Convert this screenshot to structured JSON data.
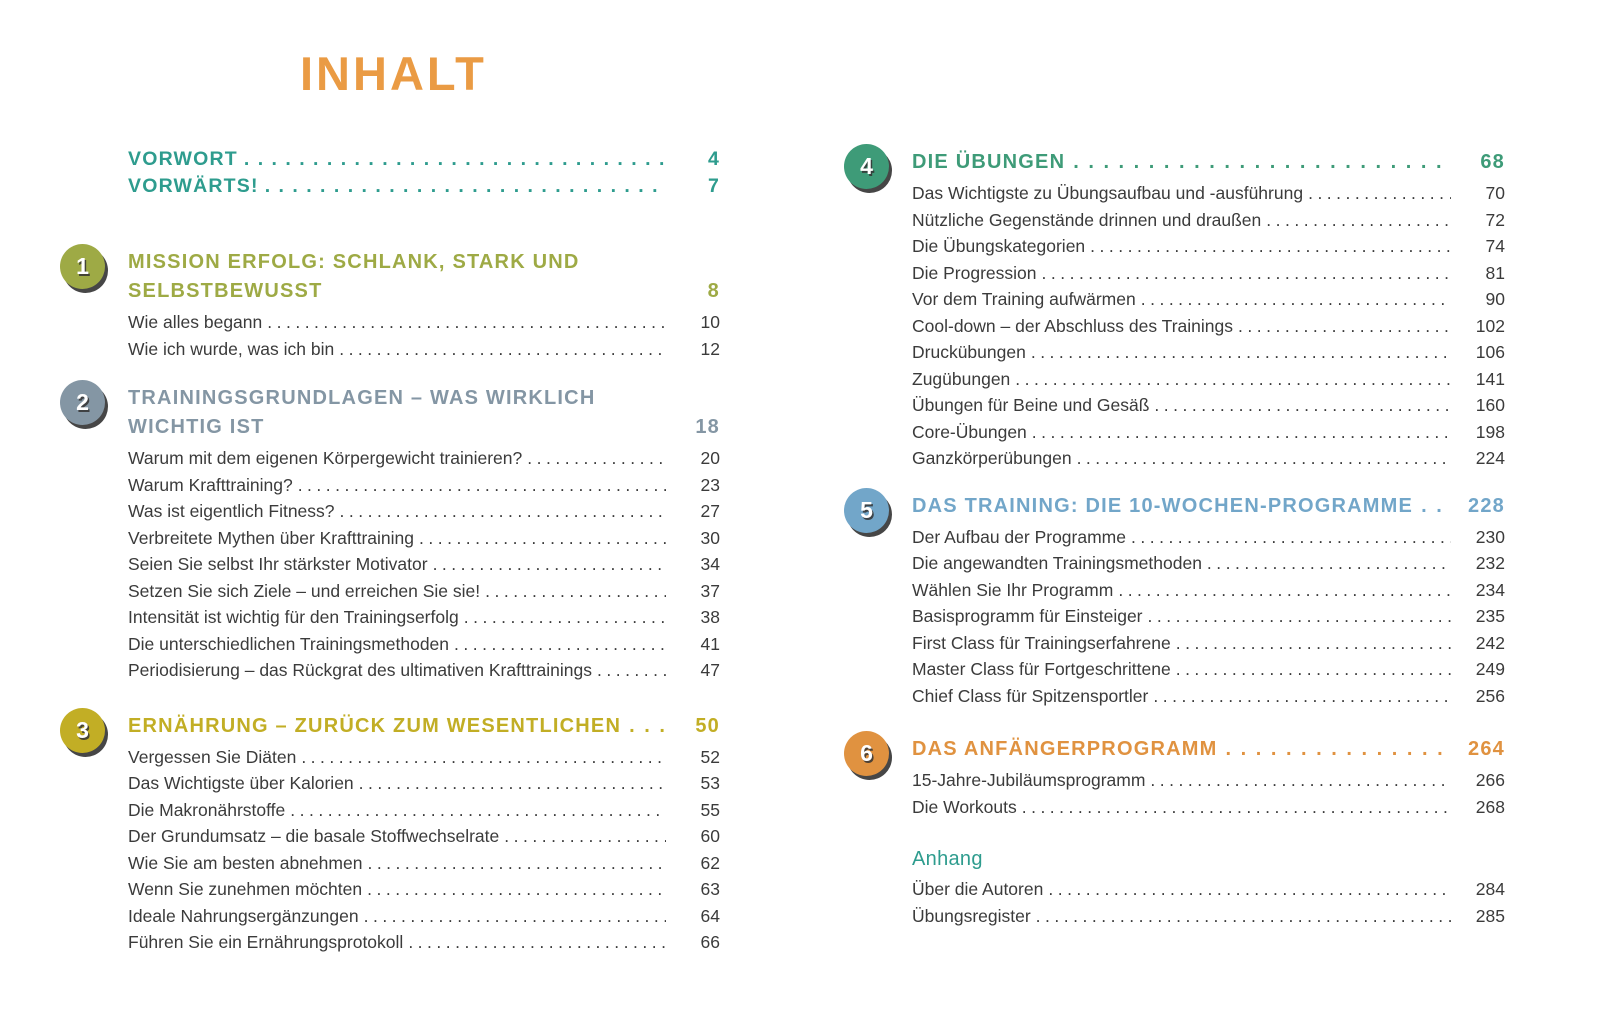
{
  "page_title": "INHALT",
  "colors": {
    "title": "#EA9B44",
    "front_matter": "#2E9C8E",
    "appendix_heading": "#2E9C8E",
    "body_text": "#3B3B3B"
  },
  "front_matter": [
    {
      "label": "VORWORT",
      "page": "4"
    },
    {
      "label": "VORWÄRTS!",
      "page": "7"
    }
  ],
  "chapters": [
    {
      "number": "1",
      "color": "#9EAA45",
      "column": "left",
      "title": "MISSION ERFOLG: SCHLANK, STARK UND SELBSTBEWUSST",
      "page": "8",
      "entries": [
        {
          "label": "Wie alles begann",
          "page": "10"
        },
        {
          "label": "Wie ich wurde, was ich bin",
          "page": "12"
        }
      ]
    },
    {
      "number": "2",
      "color": "#8496A4",
      "column": "left",
      "title": "TRAININGSGRUNDLAGEN – WAS WIRKLICH WICHTIG IST",
      "page": "18",
      "entries": [
        {
          "label": "Warum mit dem eigenen Körpergewicht trainieren?",
          "page": "20"
        },
        {
          "label": "Warum Krafttraining?",
          "page": "23"
        },
        {
          "label": "Was ist eigentlich Fitness?",
          "page": "27"
        },
        {
          "label": "Verbreitete Mythen über Krafttraining",
          "page": "30"
        },
        {
          "label": "Seien Sie selbst Ihr stärkster Motivator",
          "page": "34"
        },
        {
          "label": "Setzen Sie sich Ziele – und erreichen Sie sie!",
          "page": "37"
        },
        {
          "label": "Intensität ist wichtig für den Trainingserfolg",
          "page": "38"
        },
        {
          "label": "Die unterschiedlichen Trainingsmethoden",
          "page": "41"
        },
        {
          "label": "Periodisierung – das Rückgrat des ultimativen Krafttrainings",
          "page": "47"
        }
      ]
    },
    {
      "number": "3",
      "color": "#C2AE25",
      "column": "left",
      "title": "ERNÄHRUNG – ZURÜCK ZUM WESENTLICHEN",
      "page": "50",
      "entries": [
        {
          "label": "Vergessen Sie Diäten",
          "page": "52"
        },
        {
          "label": "Das Wichtigste über Kalorien",
          "page": "53"
        },
        {
          "label": "Die Makronährstoffe",
          "page": "55"
        },
        {
          "label": "Der Grundumsatz – die basale Stoffwechselrate",
          "page": "60"
        },
        {
          "label": "Wie Sie am besten abnehmen",
          "page": "62"
        },
        {
          "label": "Wenn Sie zunehmen möchten",
          "page": "63"
        },
        {
          "label": "Ideale Nahrungsergänzungen",
          "page": "64"
        },
        {
          "label": "Führen Sie ein Ernährungsprotokoll",
          "page": "66"
        }
      ]
    },
    {
      "number": "4",
      "color": "#3E9B78",
      "column": "right",
      "title": "DIE ÜBUNGEN",
      "page": "68",
      "entries": [
        {
          "label": "Das Wichtigste zu Übungsaufbau und -ausführung",
          "page": "70"
        },
        {
          "label": "Nützliche Gegenstände drinnen und draußen",
          "page": "72"
        },
        {
          "label": "Die Übungskategorien",
          "page": "74"
        },
        {
          "label": "Die Progression",
          "page": "81"
        },
        {
          "label": "Vor dem Training aufwärmen",
          "page": "90"
        },
        {
          "label": "Cool-down – der Abschluss des Trainings",
          "page": "102"
        },
        {
          "label": "Druckübungen",
          "page": "106"
        },
        {
          "label": "Zugübungen",
          "page": "141"
        },
        {
          "label": "Übungen für Beine und Gesäß",
          "page": "160"
        },
        {
          "label": "Core-Übungen",
          "page": "198"
        },
        {
          "label": "Ganzkörperübungen",
          "page": "224"
        }
      ]
    },
    {
      "number": "5",
      "color": "#72A6C9",
      "column": "right",
      "title": "DAS TRAINING: DIE 10-WOCHEN-PROGRAMME",
      "page": "228",
      "entries": [
        {
          "label": "Der Aufbau der Programme",
          "page": "230"
        },
        {
          "label": "Die angewandten Trainingsmethoden",
          "page": "232"
        },
        {
          "label": "Wählen Sie Ihr Programm",
          "page": "234"
        },
        {
          "label": "Basisprogramm für Einsteiger",
          "page": "235"
        },
        {
          "label": "First Class für Trainingserfahrene",
          "page": "242"
        },
        {
          "label": "Master Class für Fortgeschrittene",
          "page": "249"
        },
        {
          "label": "Chief Class für Spitzensportler",
          "page": "256"
        }
      ]
    },
    {
      "number": "6",
      "color": "#E09240",
      "column": "right",
      "title": "DAS ANFÄNGERPROGRAMM",
      "page": "264",
      "entries": [
        {
          "label": "15-Jahre-Jubiläumsprogramm",
          "page": "266"
        },
        {
          "label": "Die Workouts",
          "page": "268"
        }
      ]
    }
  ],
  "appendix": {
    "title": "Anhang",
    "entries": [
      {
        "label": "Über die Autoren",
        "page": "284"
      },
      {
        "label": "Übungsregister",
        "page": "285"
      }
    ]
  }
}
